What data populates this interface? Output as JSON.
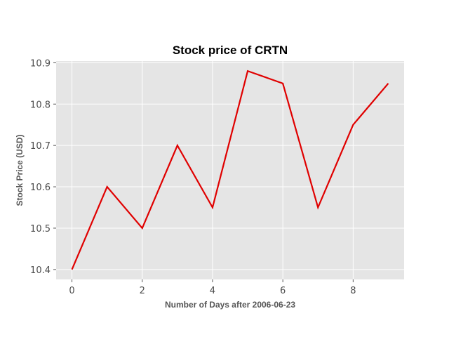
{
  "chart_data": {
    "type": "line",
    "title": "Stock price of CRTN",
    "xlabel": "Number of Days after 2006-06-23",
    "ylabel": "Stock Price (USD)",
    "x": [
      0,
      1,
      2,
      3,
      4,
      5,
      6,
      7,
      8,
      9
    ],
    "series": [
      {
        "values": [
          10.4,
          10.6,
          10.5,
          10.7,
          10.55,
          10.88,
          10.85,
          10.55,
          10.75,
          10.85
        ],
        "color": "#e00000"
      }
    ],
    "xlim": [
      -0.45,
      9.45
    ],
    "ylim": [
      10.376,
      10.904
    ],
    "xticks": [
      0,
      2,
      4,
      6,
      8
    ],
    "yticks": [
      10.4,
      10.5,
      10.6,
      10.7,
      10.8,
      10.9
    ],
    "grid": true,
    "style": {
      "plot_background": "#e5e5e5",
      "grid_color": "#ffffff",
      "tick_color": "#555555"
    }
  }
}
